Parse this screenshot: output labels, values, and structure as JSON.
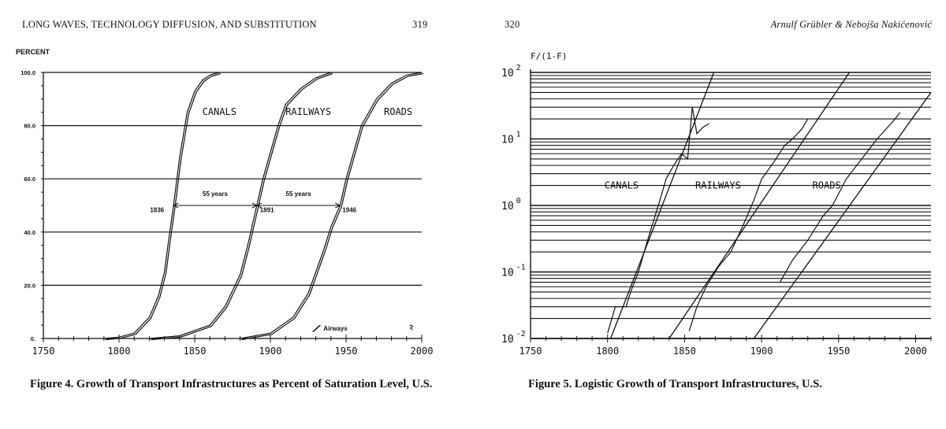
{
  "left_page": {
    "running_head": "LONG WAVES, TECHNOLOGY DIFFUSION, AND SUBSTITUTION",
    "page_number": "319",
    "caption": "Figure 4. Growth of Transport Infrastructures as Percent of Saturation Level, U.S."
  },
  "right_page": {
    "page_number": "320",
    "running_head": "Arnulf Grübler & Nebojša Nakićenović",
    "caption": "Figure 5. Logistic Growth of Transport Infrastructures, U.S."
  },
  "chart_data": [
    {
      "type": "line",
      "title": "Growth of Transport Infrastructures as Percent of Saturation Level, U.S.",
      "ylabel": "PERCENT",
      "xlim": [
        1750,
        2000
      ],
      "ylim": [
        0,
        100
      ],
      "x_ticks": [
        "1750",
        "1800",
        "1850",
        "1900",
        "1950",
        "2000"
      ],
      "y_ticks": [
        "0.",
        "20.0",
        "40.0",
        "60.0",
        "80.0",
        "100.0"
      ],
      "series": [
        {
          "name": "CANALS",
          "midpoint": 1836,
          "x": [
            1790,
            1800,
            1810,
            1820,
            1826,
            1830,
            1833,
            1836,
            1840,
            1845,
            1850,
            1855,
            1860,
            1866
          ],
          "values": [
            0,
            0.5,
            2,
            8,
            16,
            25,
            38,
            50,
            68,
            85,
            93,
            97,
            99,
            100
          ]
        },
        {
          "name": "RAILWAYS",
          "midpoint": 1891,
          "x": [
            1820,
            1840,
            1860,
            1870,
            1880,
            1885,
            1891,
            1895,
            1900,
            1905,
            1910,
            1920,
            1930,
            1940
          ],
          "values": [
            0,
            1,
            5,
            12,
            24,
            35,
            50,
            60,
            70,
            80,
            88,
            94,
            98,
            100
          ]
        },
        {
          "name": "ROADS",
          "midpoint": 1946,
          "x": [
            1880,
            1900,
            1915,
            1925,
            1935,
            1940,
            1946,
            1950,
            1955,
            1960,
            1970,
            1980,
            1990,
            2000
          ],
          "values": [
            0,
            2,
            8,
            17,
            33,
            42,
            50,
            60,
            70,
            80,
            90,
            96,
            99,
            100
          ]
        }
      ],
      "annotations": [
        {
          "text": "1836"
        },
        {
          "text": "55 years"
        },
        {
          "text": "1891"
        },
        {
          "text": "55 years"
        },
        {
          "text": "1946"
        },
        {
          "text": "Airways"
        }
      ]
    },
    {
      "type": "line",
      "title": "Logistic Growth of Transport Infrastructures, U.S.",
      "ylabel": "F/(1-F)",
      "yscale": "log",
      "xlim": [
        1750,
        2010
      ],
      "ylim": [
        0.01,
        100
      ],
      "x_ticks": [
        "1750",
        "1800",
        "1850",
        "1900",
        "1950",
        "2000"
      ],
      "y_ticks": [
        {
          "base": "10",
          "exp": "-2"
        },
        {
          "base": "10",
          "exp": "-1"
        },
        {
          "base": "10",
          "exp": "0"
        },
        {
          "base": "10",
          "exp": "1"
        },
        {
          "base": "10",
          "exp": "2"
        }
      ],
      "series": [
        {
          "name": "CANALS",
          "x": [
            1802,
            1869
          ],
          "values": [
            0.01,
            100
          ]
        },
        {
          "name": "RAILWAYS",
          "x": [
            1840,
            1957
          ],
          "values": [
            0.01,
            100
          ]
        },
        {
          "name": "ROADS",
          "x": [
            1895,
            2010
          ],
          "values": [
            0.01,
            50
          ]
        }
      ]
    }
  ]
}
